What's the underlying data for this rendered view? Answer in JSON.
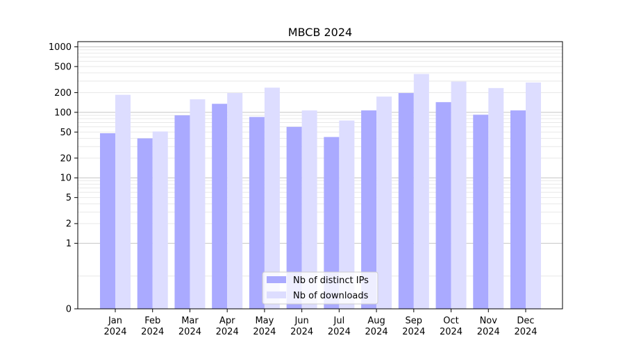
{
  "chart_data": {
    "type": "bar",
    "title": "MBCB 2024",
    "xlabel": "",
    "ylabel": "",
    "y_scale": "symlog",
    "ylim": [
      0,
      1200
    ],
    "y_ticks": [
      0,
      1,
      2,
      5,
      10,
      20,
      50,
      100,
      200,
      500,
      1000
    ],
    "y_tick_labels": [
      "0",
      "1",
      "2",
      "5",
      "10",
      "20",
      "50",
      "100",
      "200",
      "500",
      "1000"
    ],
    "categories": [
      [
        "Jan",
        "2024"
      ],
      [
        "Feb",
        "2024"
      ],
      [
        "Mar",
        "2024"
      ],
      [
        "Apr",
        "2024"
      ],
      [
        "May",
        "2024"
      ],
      [
        "Jun",
        "2024"
      ],
      [
        "Jul",
        "2024"
      ],
      [
        "Aug",
        "2024"
      ],
      [
        "Sep",
        "2024"
      ],
      [
        "Oct",
        "2024"
      ],
      [
        "Nov",
        "2024"
      ],
      [
        "Dec",
        "2024"
      ]
    ],
    "series": [
      {
        "name": "Nb of distinct IPs",
        "color": "#aaaaff",
        "values": [
          48,
          40,
          90,
          135,
          85,
          60,
          42,
          107,
          197,
          143,
          92,
          107
        ]
      },
      {
        "name": "Nb of downloads",
        "color": "#ddddff",
        "values": [
          185,
          51,
          158,
          197,
          238,
          107,
          75,
          174,
          385,
          295,
          235,
          285
        ]
      }
    ],
    "grid": true,
    "legend": "lower-center"
  }
}
